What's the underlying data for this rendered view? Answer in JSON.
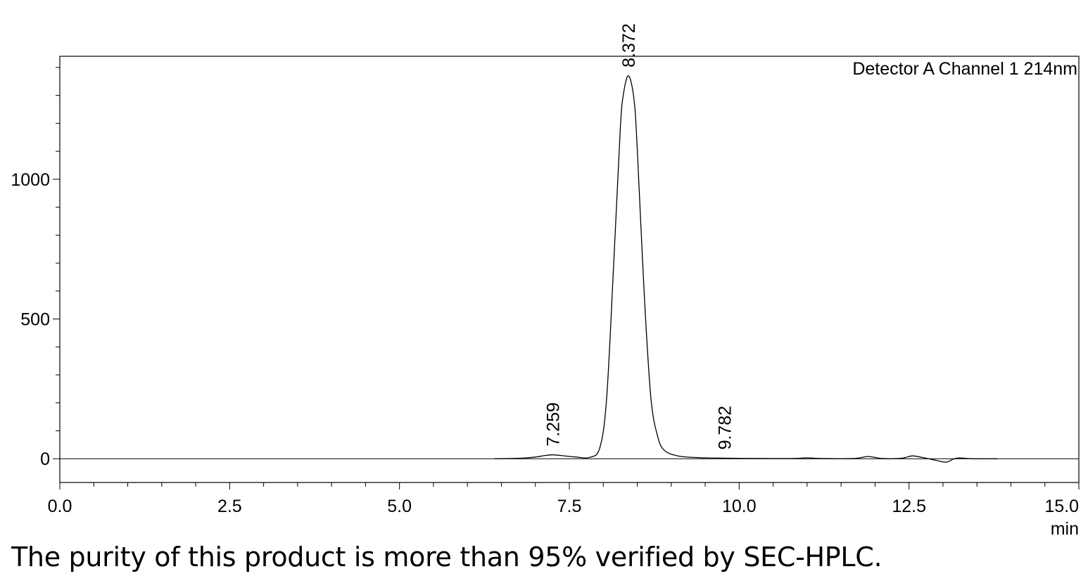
{
  "chart_data": {
    "type": "line",
    "legend": "Detector A Channel 1 214nm",
    "legend_position": "top-right",
    "xlabel": "min",
    "ylabel": "",
    "xlim": [
      0,
      15
    ],
    "ylim": [
      -85,
      1440
    ],
    "x_ticks": [
      "0.0",
      "2.5",
      "5.0",
      "7.5",
      "10.0",
      "12.5",
      "15.0"
    ],
    "y_ticks": [
      "0",
      "500",
      "1000"
    ],
    "grid": false,
    "series": [
      {
        "name": "Detector A Channel 1 214nm",
        "x": [
          6.4,
          6.8,
          7.0,
          7.15,
          7.259,
          7.4,
          7.6,
          7.8,
          7.95,
          8.05,
          8.15,
          8.25,
          8.3,
          8.372,
          8.45,
          8.5,
          8.6,
          8.7,
          8.8,
          8.9,
          9.1,
          9.4,
          9.782,
          10.3,
          10.8,
          11.0,
          11.2,
          11.7,
          11.9,
          12.1,
          12.4,
          12.55,
          12.75,
          12.9,
          13.05,
          13.2,
          13.45,
          13.8
        ],
        "y": [
          0,
          2,
          6,
          12,
          14,
          11,
          6,
          5,
          40,
          220,
          680,
          1180,
          1310,
          1370,
          1290,
          1110,
          600,
          220,
          80,
          30,
          10,
          4,
          2,
          1,
          1,
          3,
          1,
          1,
          8,
          1,
          2,
          10,
          2,
          -6,
          -12,
          2,
          0,
          0
        ]
      }
    ],
    "peak_labels": [
      {
        "x": 7.259,
        "y": 14,
        "text": "7.259"
      },
      {
        "x": 8.372,
        "y": 1370,
        "text": "8.372"
      },
      {
        "x": 9.782,
        "y": 2,
        "text": "9.782"
      }
    ]
  },
  "caption": "The purity of this product is more than 95% verified by SEC-HPLC."
}
